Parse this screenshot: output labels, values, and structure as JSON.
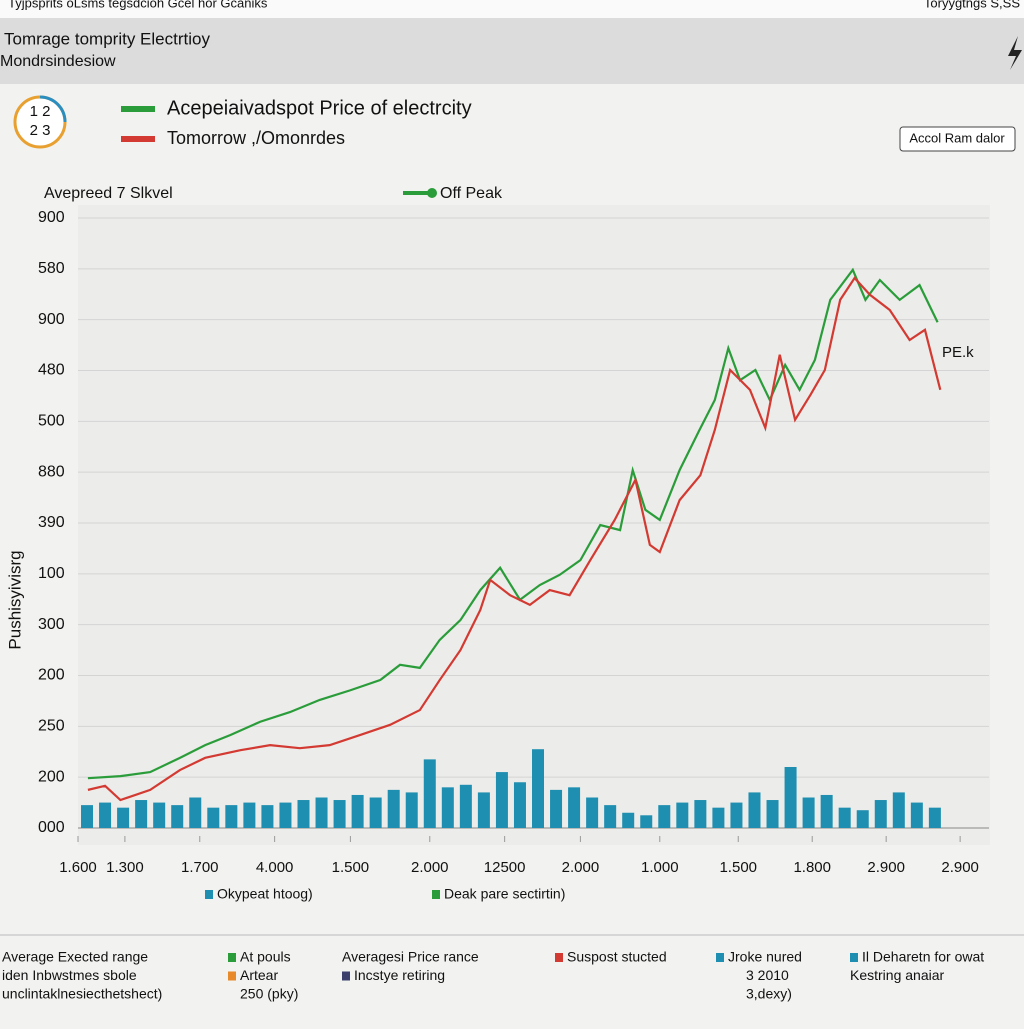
{
  "screen": {
    "topbar_left": "Tyjpsprits oLsms tegsdcioh   Gcel hor Gcaniks",
    "topbar_right": "Toryygtngs  S,SS",
    "header_title": "Tomrage tomprity Electrtioy",
    "header_subtitle": "Mondrsindesiow",
    "badge": [
      "1 2",
      "2 3"
    ],
    "button": "Accol Ram dalor",
    "footer": [
      {
        "lines": [
          "Average Exected range",
          "iden Inbwstmes sbole",
          "unclintaklnesiecthetshect)"
        ]
      },
      {
        "items": [
          {
            "text": "At pouls",
            "color": "#2a9d3a"
          },
          {
            "text": "Artear",
            "color": "#e8892a"
          }
        ],
        "lines": [
          "250 (pky)"
        ]
      },
      {
        "lines": [
          "Averagesi Price rance"
        ],
        "items": [
          {
            "text": "Incstye retiring",
            "color": "#3a3f6b"
          }
        ]
      },
      {
        "items": [
          {
            "text": "Suspost stucted",
            "color": "#d33a32"
          }
        ]
      },
      {
        "items": [
          {
            "text": "Jroke nured",
            "color": "#1e8fb0"
          }
        ],
        "lines": [
          "3 2010",
          "3,dexy)"
        ]
      },
      {
        "items": [
          {
            "text": "Il Deharetn for owat",
            "color": "#1e8fb0"
          }
        ],
        "lines": [
          "Kestring anaiar"
        ]
      }
    ]
  },
  "chart_data": {
    "type": "line",
    "title": "Acepeiaivadspot Price of electrcity",
    "subtitle": "Tomorrow ,/Omonrdes",
    "title_color": "#2a9d3a",
    "subtitle_color": "#d33a32",
    "panel_label": "Avepreed 7 Slkvel",
    "off_peak_label": "Off Peak",
    "peak_annotation": "PE.k",
    "y_label": "Pushisyivisrg",
    "grid": true,
    "xlim": [
      0,
      101
    ],
    "ylim": [
      0,
      12
    ],
    "xticks": [
      {
        "value": 0,
        "label": "1.600"
      },
      {
        "value": 5.2,
        "label": "1.300"
      },
      {
        "value": 13.5,
        "label": "1.700"
      },
      {
        "value": 21.8,
        "label": "4.000"
      },
      {
        "value": 30.2,
        "label": "1.500"
      },
      {
        "value": 39,
        "label": "2.000"
      },
      {
        "value": 47.3,
        "label": "12500"
      },
      {
        "value": 55.7,
        "label": "2.000"
      },
      {
        "value": 64.5,
        "label": "1.000"
      },
      {
        "value": 73.2,
        "label": "1.500"
      },
      {
        "value": 81.4,
        "label": "1.800"
      },
      {
        "value": 89.6,
        "label": "2.900"
      },
      {
        "value": 97.8,
        "label": "2.900"
      }
    ],
    "yticks": [
      {
        "value": 0,
        "label": "000"
      },
      {
        "value": 1,
        "label": "200"
      },
      {
        "value": 2,
        "label": "250"
      },
      {
        "value": 3,
        "label": "200"
      },
      {
        "value": 4,
        "label": "300"
      },
      {
        "value": 5,
        "label": "100"
      },
      {
        "value": 6,
        "label": "390"
      },
      {
        "value": 7,
        "label": "880"
      },
      {
        "value": 8,
        "label": "500"
      },
      {
        "value": 9,
        "label": "480"
      },
      {
        "value": 10,
        "label": "900"
      },
      {
        "value": 11,
        "label": "580"
      },
      {
        "value": 12,
        "label": "900"
      }
    ],
    "series": [
      {
        "name": "Off Peak",
        "type": "line",
        "color": "#2a9d3a",
        "x": [
          1.1,
          4.7,
          8.0,
          11.3,
          14.1,
          16.9,
          20.2,
          23.5,
          26.8,
          30.2,
          33.5,
          35.7,
          37.9,
          40.1,
          42.4,
          44.6,
          46.8,
          49.0,
          51.2,
          53.4,
          55.7,
          57.9,
          60.1,
          61.5,
          62.9,
          64.5,
          66.7,
          68.9,
          70.6,
          72.1,
          73.4,
          75.1,
          76.7,
          78.4,
          80.0,
          81.7,
          83.4,
          85.9,
          87.3,
          88.9,
          91.1,
          93.3,
          95.3
        ],
        "values": [
          0.98,
          1.02,
          1.1,
          1.38,
          1.63,
          1.83,
          2.09,
          2.28,
          2.52,
          2.71,
          2.91,
          3.21,
          3.15,
          3.7,
          4.09,
          4.68,
          5.12,
          4.49,
          4.78,
          4.98,
          5.27,
          5.96,
          5.86,
          7.04,
          6.26,
          6.06,
          7.04,
          7.83,
          8.42,
          9.44,
          8.81,
          9.01,
          8.42,
          9.11,
          8.62,
          9.21,
          10.39,
          10.98,
          10.39,
          10.78,
          10.39,
          10.68,
          9.95
        ]
      },
      {
        "name": "PE.k",
        "type": "line",
        "color": "#d33a32",
        "x": [
          1.1,
          3.0,
          4.7,
          8.0,
          11.3,
          14.1,
          18.0,
          21.3,
          24.6,
          27.9,
          31.3,
          34.6,
          37.9,
          40.1,
          42.4,
          44.6,
          45.7,
          47.9,
          50.1,
          52.3,
          54.5,
          56.8,
          59.5,
          61.8,
          63.4,
          64.5,
          66.7,
          69.0,
          70.6,
          72.3,
          74.5,
          76.2,
          77.8,
          79.5,
          81.2,
          82.8,
          84.5,
          86.1,
          87.8,
          90.0,
          92.2,
          93.9,
          95.6
        ],
        "values": [
          0.75,
          0.83,
          0.55,
          0.75,
          1.14,
          1.38,
          1.53,
          1.63,
          1.57,
          1.63,
          1.83,
          2.03,
          2.32,
          2.91,
          3.5,
          4.29,
          4.88,
          4.58,
          4.39,
          4.68,
          4.58,
          5.27,
          6.06,
          6.85,
          5.57,
          5.43,
          6.45,
          6.94,
          7.83,
          9.01,
          8.62,
          7.87,
          9.31,
          8.03,
          8.52,
          9.01,
          10.39,
          10.82,
          10.49,
          10.19,
          9.6,
          9.8,
          8.62
        ]
      },
      {
        "name": "Okypeat htoog)",
        "type": "bar",
        "color": "#1e8fb0",
        "x": [
          1,
          3,
          5,
          7,
          9,
          11,
          13,
          15,
          17,
          19,
          21,
          23,
          25,
          27,
          29,
          31,
          33,
          35,
          37,
          39,
          41,
          43,
          45,
          47,
          49,
          51,
          53,
          55,
          57,
          59,
          61,
          63,
          65,
          67,
          69,
          71,
          73,
          75,
          77,
          79,
          81,
          83,
          85,
          87,
          89,
          91,
          93,
          95
        ],
        "values": [
          0.45,
          0.5,
          0.4,
          0.55,
          0.5,
          0.45,
          0.6,
          0.4,
          0.45,
          0.5,
          0.45,
          0.5,
          0.55,
          0.6,
          0.55,
          0.65,
          0.6,
          0.75,
          0.7,
          1.35,
          0.8,
          0.85,
          0.7,
          1.1,
          0.9,
          1.55,
          0.75,
          0.8,
          0.6,
          0.45,
          0.3,
          0.25,
          0.45,
          0.5,
          0.55,
          0.4,
          0.5,
          0.7,
          0.55,
          1.2,
          0.6,
          0.65,
          0.4,
          0.35,
          0.55,
          0.7,
          0.5,
          0.4
        ]
      }
    ],
    "bottom_legend": [
      {
        "name": "Okypeat htoog)",
        "color": "#1e8fb0"
      },
      {
        "name": "Deak pare sectirtin)",
        "color": "#2a9d3a"
      }
    ]
  }
}
